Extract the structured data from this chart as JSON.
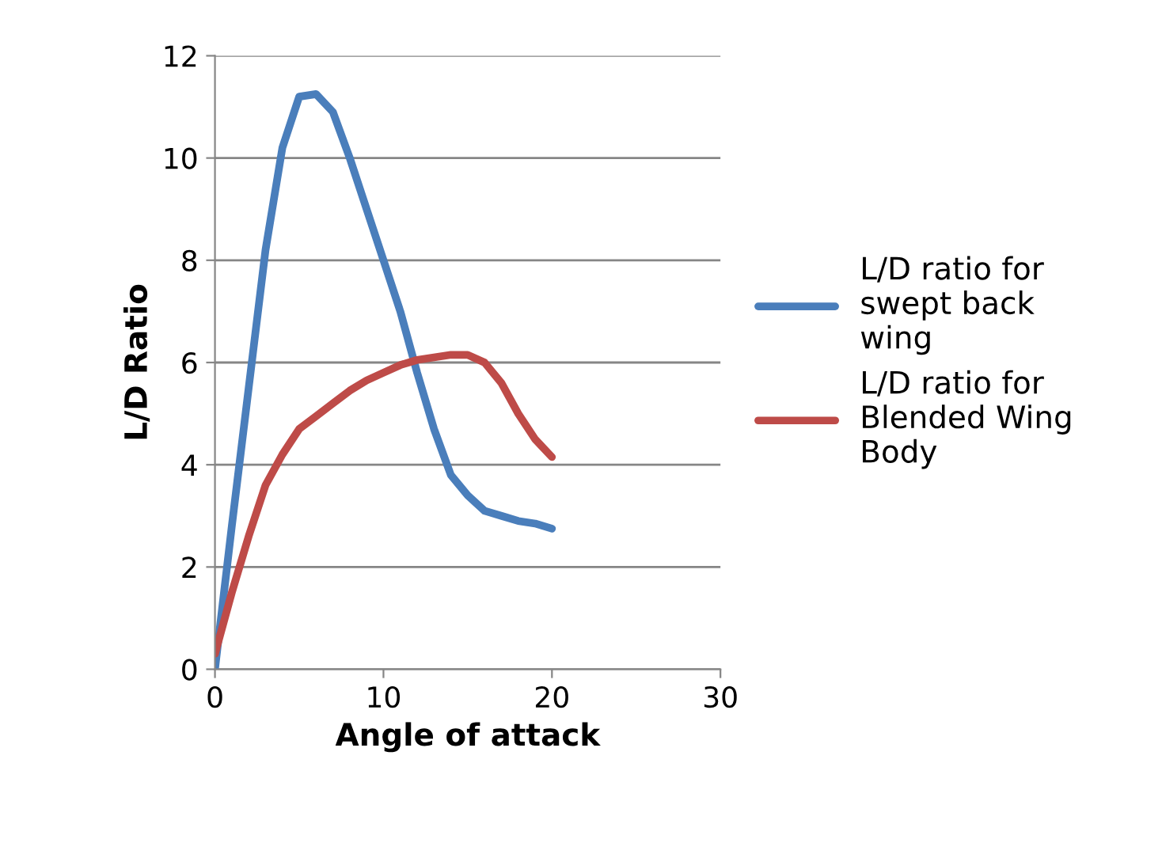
{
  "chart_data": {
    "type": "line",
    "xlabel": "Angle of attack",
    "ylabel": "L/D Ratio",
    "x": [
      0,
      1,
      2,
      3,
      4,
      5,
      6,
      7,
      8,
      9,
      10,
      11,
      12,
      13,
      14,
      15,
      16,
      17,
      18,
      19,
      20
    ],
    "series": [
      {
        "name": "L/D ratio for swept back wing",
        "color": "#4a7ebb",
        "values": [
          0,
          2.8,
          5.5,
          8.2,
          10.2,
          11.2,
          11.25,
          10.9,
          10.0,
          9.0,
          8.0,
          7.0,
          5.8,
          4.7,
          3.8,
          3.4,
          3.1,
          3.0,
          2.9,
          2.85,
          2.75
        ]
      },
      {
        "name": "L/D ratio for Blended Wing Body",
        "color": "#be4b48",
        "values": [
          0.3,
          1.5,
          2.6,
          3.6,
          4.2,
          4.7,
          4.95,
          5.2,
          5.45,
          5.65,
          5.8,
          5.95,
          6.05,
          6.1,
          6.15,
          6.15,
          6.0,
          5.6,
          5.0,
          4.5,
          4.15
        ]
      }
    ],
    "xlim": [
      0,
      30
    ],
    "xticks": [
      0,
      10,
      20,
      30
    ],
    "ylim": [
      0,
      12
    ],
    "yticks": [
      0,
      2,
      4,
      6,
      8,
      10,
      12
    ],
    "grid": "y",
    "legend": "right",
    "marker": "none",
    "line_style": "solid"
  }
}
